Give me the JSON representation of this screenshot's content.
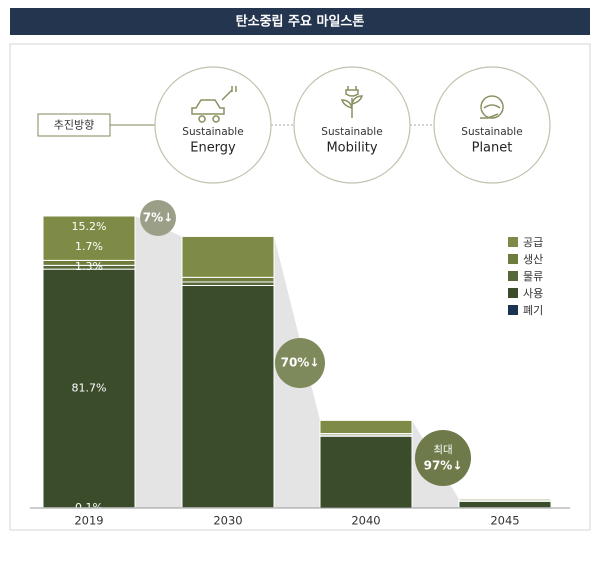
{
  "chart_data": {
    "type": "stacked-bar",
    "title": "탄소중립 주요 마일스톤",
    "direction_label": "추진방향",
    "directions": [
      [
        "Sustainable",
        "Energy"
      ],
      [
        "Sustainable",
        "Mobility"
      ],
      [
        "Sustainable",
        "Planet"
      ]
    ],
    "categories": [
      "2019",
      "2030",
      "2040",
      "2045"
    ],
    "series": [
      {
        "name": "공급",
        "color": "#7e8b46",
        "values": [
          15.2,
          14,
          4.5,
          0.5
        ],
        "value_labels": [
          "15.2%",
          null,
          null,
          null
        ]
      },
      {
        "name": "생산",
        "color": "#6d7c3c",
        "values": [
          1.7,
          1.6,
          0.5,
          0.1
        ],
        "value_labels": [
          "1.7%",
          null,
          null,
          null
        ]
      },
      {
        "name": "물류",
        "color": "#56673a",
        "values": [
          1.3,
          1.2,
          0.4,
          0.1
        ],
        "value_labels": [
          "1.3%",
          null,
          null,
          null
        ]
      },
      {
        "name": "사용",
        "color": "#3a4c2a",
        "values": [
          81.7,
          76.1,
          24.6,
          2.2
        ],
        "value_labels": [
          "81.7%",
          null,
          null,
          null
        ]
      },
      {
        "name": "폐기",
        "color": "#1b3250",
        "values": [
          0.1,
          0.1,
          0,
          0.1
        ],
        "value_labels": [
          "0.1%",
          null,
          null,
          null
        ]
      }
    ],
    "annotations": [
      [
        "7%↓"
      ],
      [
        "70%↓"
      ],
      [
        "최대",
        "97%↓"
      ]
    ]
  }
}
